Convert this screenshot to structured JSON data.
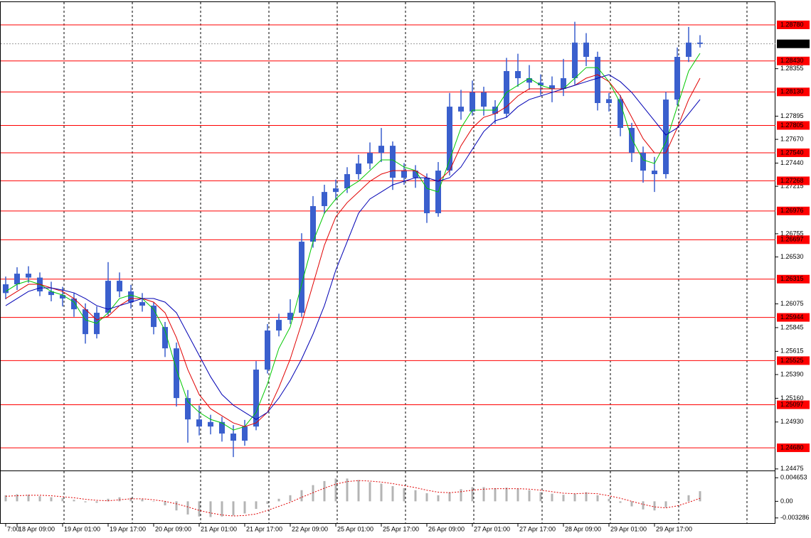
{
  "chart_data": [
    {
      "type": "candlestick",
      "categories": [
        "7:00",
        "18 Apr 09:00",
        null,
        null,
        null,
        "19 Apr 01:00",
        null,
        null,
        null,
        "19 Apr 17:00",
        null,
        null,
        null,
        "20 Apr 09:00",
        null,
        null,
        null,
        "21 Apr 01:00",
        null,
        null,
        null,
        "21 Apr 17:00",
        null,
        null,
        null,
        "22 Apr 09:00",
        null,
        null,
        null,
        "25 Apr 01:00",
        null,
        null,
        null,
        "25 Apr 17:00",
        null,
        null,
        null,
        "26 Apr 09:00",
        null,
        null,
        null,
        "27 Apr 01:00",
        null,
        null,
        null,
        "27 Apr 17:00",
        null,
        null,
        null,
        "28 Apr 09:00",
        null,
        null,
        null,
        "29 Apr 01:00",
        null,
        null,
        null,
        "29 Apr 17:00",
        null,
        null,
        null,
        null
      ],
      "open": [
        1.2618,
        1.26265,
        1.26368,
        1.2633,
        1.26196,
        1.26161,
        1.26127,
        1.26023,
        1.25782,
        1.25989,
        1.26299,
        1.26196,
        1.26092,
        1.26058,
        1.25851,
        1.25644,
        1.25162,
        1.24955,
        1.24886,
        1.2493,
        1.24818,
        1.24749,
        1.24886,
        1.25438,
        1.25817,
        1.2592,
        1.25989,
        1.26678,
        1.27023,
        1.2716,
        1.27195,
        1.27333,
        1.27436,
        1.27539,
        1.27608,
        1.27298,
        1.27367,
        1.27298,
        1.26954,
        1.27367,
        1.27987,
        1.2794,
        1.28125,
        1.27987,
        1.27918,
        1.28332,
        1.28263,
        1.2822,
        1.28194,
        1.2816,
        1.28263,
        1.28608,
        1.2847,
        1.28022,
        1.2806,
        1.27781,
        1.27539,
        1.27367,
        1.27333,
        1.28056,
        1.2847,
        1.28608
      ],
      "high": [
        1.2634,
        1.2643,
        1.2644,
        1.2638,
        1.2629,
        1.2624,
        1.2618,
        1.2608,
        1.2605,
        1.2648,
        1.2638,
        1.2626,
        1.2618,
        1.2609,
        1.259,
        1.257,
        1.2524,
        1.2509,
        1.25,
        1.2498,
        1.249,
        1.2495,
        1.2552,
        1.2588,
        1.2598,
        1.2612,
        1.2676,
        1.2712,
        1.2723,
        1.2728,
        1.274,
        1.2752,
        1.2764,
        1.2778,
        1.2765,
        1.2744,
        1.2742,
        1.2734,
        1.2745,
        1.2812,
        1.2815,
        1.2824,
        1.2818,
        1.2805,
        1.2846,
        1.285,
        1.2839,
        1.283,
        1.2828,
        1.2845,
        1.2881,
        1.287,
        1.2852,
        1.2812,
        1.281,
        1.2783,
        1.276,
        1.275,
        1.2813,
        1.2856,
        1.2876,
        1.2868
      ],
      "low": [
        1.2612,
        1.2621,
        1.2628,
        1.2615,
        1.261,
        1.2605,
        1.2595,
        1.2569,
        1.2574,
        1.2596,
        1.2614,
        1.2603,
        1.26,
        1.2578,
        1.2556,
        1.2508,
        1.2473,
        1.248,
        1.2481,
        1.2474,
        1.2459,
        1.247,
        1.2485,
        1.254,
        1.2576,
        1.2588,
        1.2595,
        1.2662,
        1.2695,
        1.2708,
        1.2715,
        1.2728,
        1.2738,
        1.2745,
        1.2718,
        1.2723,
        1.272,
        1.2686,
        1.2692,
        1.2732,
        1.2786,
        1.279,
        1.279,
        1.2782,
        1.2788,
        1.2818,
        1.2815,
        1.281,
        1.2803,
        1.2809,
        1.282,
        1.2838,
        1.2795,
        1.2794,
        1.277,
        1.2745,
        1.2725,
        1.2716,
        1.2729,
        1.28,
        1.2842,
        1.2856
      ],
      "close": [
        1.26265,
        1.26368,
        1.2633,
        1.26196,
        1.26161,
        1.26127,
        1.26023,
        1.25782,
        1.25989,
        1.26299,
        1.26196,
        1.26092,
        1.26058,
        1.25851,
        1.25644,
        1.25162,
        1.24955,
        1.24886,
        1.2493,
        1.24818,
        1.24749,
        1.24886,
        1.25438,
        1.25817,
        1.2592,
        1.25989,
        1.26678,
        1.27023,
        1.2716,
        1.27195,
        1.27333,
        1.27436,
        1.27539,
        1.27608,
        1.27298,
        1.27367,
        1.27298,
        1.26954,
        1.27367,
        1.27987,
        1.2794,
        1.28125,
        1.27987,
        1.27918,
        1.28332,
        1.28263,
        1.2822,
        1.28194,
        1.2816,
        1.28263,
        1.28608,
        1.2847,
        1.28022,
        1.2806,
        1.27781,
        1.27539,
        1.27367,
        1.27333,
        1.28056,
        1.2847,
        1.28608,
        1.28596
      ],
      "color": "#3a5fcd",
      "series": [
        {
          "color": "#00c800",
          "values": [
            1.26196,
            1.26265,
            1.26299,
            1.26265,
            1.26196,
            1.26161,
            1.26092,
            1.2592,
            1.25886,
            1.25989,
            1.26127,
            1.26161,
            1.26127,
            1.26023,
            1.25817,
            1.25438,
            1.25128,
            1.25024,
            1.24955,
            1.24921,
            1.24852,
            1.24886,
            1.25024,
            1.253,
            1.25644,
            1.25851,
            1.26265,
            1.26678,
            1.26954,
            1.27092,
            1.27195,
            1.27264,
            1.27367,
            1.27471,
            1.27471,
            1.27402,
            1.27367,
            1.27195,
            1.2716,
            1.27471,
            1.27781,
            1.27953,
            1.27953,
            1.27953,
            1.28125,
            1.28194,
            1.28263,
            1.28194,
            1.2816,
            1.2816,
            1.28263,
            1.28366,
            1.28366,
            1.28229,
            1.28022,
            1.27677,
            1.27471,
            1.27436,
            1.27643,
            1.27987,
            1.28332,
            1.28504
          ]
        },
        {
          "color": "#e00000",
          "values": [
            1.26127,
            1.26196,
            1.26265,
            1.26265,
            1.2623,
            1.26196,
            1.26127,
            1.26023,
            1.2592,
            1.25955,
            1.26058,
            1.26127,
            1.26127,
            1.26092,
            1.25989,
            1.25748,
            1.25438,
            1.25196,
            1.25059,
            1.2499,
            1.24921,
            1.24886,
            1.24921,
            1.25024,
            1.25265,
            1.25541,
            1.25886,
            1.26265,
            1.26644,
            1.26919,
            1.27057,
            1.2716,
            1.27264,
            1.27333,
            1.27367,
            1.27367,
            1.27367,
            1.27298,
            1.27264,
            1.27367,
            1.27608,
            1.27781,
            1.27884,
            1.27918,
            1.27987,
            1.28091,
            1.2816,
            1.2816,
            1.2816,
            1.2816,
            1.28194,
            1.28263,
            1.28297,
            1.28229,
            1.28091,
            1.27884,
            1.27677,
            1.27539,
            1.27539,
            1.27781,
            1.28056,
            1.28263
          ]
        },
        {
          "color": "#0000b4",
          "values": [
            1.26058,
            1.26127,
            1.26196,
            1.2623,
            1.2623,
            1.26209,
            1.26182,
            1.26127,
            1.26058,
            1.26023,
            1.26058,
            1.26092,
            1.26127,
            1.26127,
            1.26092,
            1.25989,
            1.25782,
            1.25575,
            1.25369,
            1.25196,
            1.25093,
            1.25024,
            1.24955,
            1.25024,
            1.25162,
            1.25334,
            1.25541,
            1.25782,
            1.26058,
            1.26402,
            1.26678,
            1.26954,
            1.27092,
            1.2716,
            1.27229,
            1.27264,
            1.27298,
            1.27298,
            1.27264,
            1.27298,
            1.27402,
            1.27574,
            1.27746,
            1.2785,
            1.27884,
            1.27987,
            1.28056,
            1.28091,
            1.28125,
            1.2816,
            1.28194,
            1.28229,
            1.28263,
            1.28297,
            1.28229,
            1.28125,
            1.27987,
            1.2785,
            1.27712,
            1.27781,
            1.27918,
            1.28056
          ]
        }
      ],
      "ylim": [
        1.2446,
        1.29021
      ],
      "yticks": [
        {
          "value": 1.28355,
          "label": "1.28355"
        },
        {
          "value": 1.27895,
          "label": "1.27895"
        },
        {
          "value": 1.2767,
          "label": "1.27670"
        },
        {
          "value": 1.2744,
          "label": "1.27440"
        },
        {
          "value": 1.27215,
          "label": "1.27215"
        },
        {
          "value": 1.26755,
          "label": "1.26755"
        },
        {
          "value": 1.2653,
          "label": "1.26530"
        },
        {
          "value": 1.26075,
          "label": "1.26075"
        },
        {
          "value": 1.25845,
          "label": "1.25845"
        },
        {
          "value": 1.25615,
          "label": "1.25615"
        },
        {
          "value": 1.2539,
          "label": "1.25390"
        },
        {
          "value": 1.2516,
          "label": "1.25160"
        },
        {
          "value": 1.2493,
          "label": "1.24930"
        },
        {
          "value": 1.24475,
          "label": "1.24475"
        }
      ],
      "levels": [
        {
          "value": 1.2878,
          "label": "1.28780"
        },
        {
          "value": 1.2843,
          "label": "1.28430"
        },
        {
          "value": 1.2813,
          "label": "1.28130"
        },
        {
          "value": 1.27805,
          "label": "1.27805"
        },
        {
          "value": 1.2754,
          "label": "1.27540"
        },
        {
          "value": 1.27268,
          "label": "1.27268"
        },
        {
          "value": 1.26976,
          "label": "1.26976"
        },
        {
          "value": 1.26697,
          "label": "1.26697"
        },
        {
          "value": 1.26315,
          "label": "1.26315"
        },
        {
          "value": 1.25944,
          "label": "1.25944"
        },
        {
          "value": 1.25525,
          "label": "1.25525"
        },
        {
          "value": 1.25097,
          "label": "1.25097"
        },
        {
          "value": 1.2468,
          "label": "1.24680"
        }
      ],
      "level_color": "#ff0000",
      "last_price": {
        "value": 1.28596,
        "label": "1.28596"
      }
    },
    {
      "type": "bar",
      "values": [
        0.0012,
        0.0014,
        0.0013,
        0.001,
        0.0008,
        0.0006,
        0.0003,
        -0.0002,
        -0.0003,
        0.0005,
        0.0008,
        0.0007,
        0.0004,
        -0.0001,
        -0.0008,
        -0.0018,
        -0.0026,
        -0.003,
        -0.0031,
        -0.003,
        -0.0028,
        -0.0024,
        -0.0015,
        -0.0005,
        0.0005,
        0.0012,
        0.0022,
        0.0032,
        0.004,
        0.0045,
        0.0045,
        0.0042,
        0.0038,
        0.0035,
        0.003,
        0.0026,
        0.0022,
        0.0016,
        0.0012,
        0.0018,
        0.0024,
        0.0028,
        0.0028,
        0.0026,
        0.0027,
        0.0025,
        0.0022,
        0.0018,
        0.0015,
        0.0013,
        0.0015,
        0.0018,
        0.0012,
        0.0005,
        -0.0003,
        -0.001,
        -0.0016,
        -0.0018,
        -0.0012,
        0.0,
        0.0012,
        0.002
      ],
      "color": "#b4b4b4",
      "series": [
        {
          "color": "#e00000",
          "values": [
            0.001,
            0.0011,
            0.0012,
            0.0012,
            0.0011,
            0.0009,
            0.0007,
            0.0004,
            0.0002,
            0.0001,
            0.0003,
            0.0005,
            0.0005,
            0.0003,
            0.0,
            -0.0005,
            -0.0011,
            -0.0018,
            -0.0023,
            -0.0027,
            -0.0029,
            -0.0028,
            -0.0025,
            -0.0018,
            -0.001,
            -0.0002,
            0.0008,
            0.0017,
            0.0026,
            0.0034,
            0.0039,
            0.0041,
            0.004,
            0.0038,
            0.0035,
            0.0031,
            0.0027,
            0.0022,
            0.0018,
            0.0017,
            0.0019,
            0.0022,
            0.0024,
            0.0025,
            0.0025,
            0.0025,
            0.0024,
            0.0022,
            0.0019,
            0.0016,
            0.0015,
            0.0016,
            0.0015,
            0.0011,
            0.0006,
            0.0,
            -0.0006,
            -0.0011,
            -0.0013,
            -0.0009,
            -0.0002,
            0.0006
          ]
        }
      ],
      "ylim": [
        -0.00444,
        0.00581
      ],
      "yticks": [
        {
          "value": 0.004653,
          "label": "0.004653"
        },
        {
          "value": 0,
          "label": "0.00"
        },
        {
          "value": -0.003286,
          "label": "-0.003286"
        }
      ]
    }
  ]
}
